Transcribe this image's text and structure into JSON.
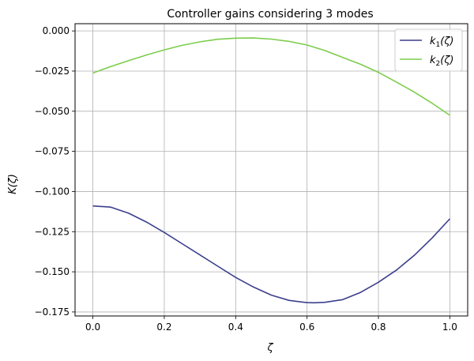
{
  "chart_data": {
    "type": "line",
    "title": "Controller gains considering 3 modes",
    "xlabel": "ζ",
    "ylabel": "K(ζ)",
    "xlim": [
      -0.05,
      1.05
    ],
    "ylim": [
      -0.1775,
      0.0045
    ],
    "xticks": [
      0.0,
      0.2,
      0.4,
      0.6,
      0.8,
      1.0
    ],
    "xtick_labels": [
      "0.0",
      "0.2",
      "0.4",
      "0.6",
      "0.8",
      "1.0"
    ],
    "yticks": [
      0.0,
      -0.025,
      -0.05,
      -0.075,
      -0.1,
      -0.125,
      -0.15,
      -0.175
    ],
    "ytick_labels": [
      "0.000",
      "−0.025",
      "−0.050",
      "−0.075",
      "−0.100",
      "−0.125",
      "−0.150",
      "−0.175"
    ],
    "grid": true,
    "legend": "top-right",
    "series": [
      {
        "name": "k1(ζ)",
        "legend_base": "k",
        "legend_sub": "1",
        "legend_tail": "(ζ)",
        "color": "#3b3f8c",
        "x": [
          0.0,
          0.05,
          0.1,
          0.15,
          0.2,
          0.25,
          0.3,
          0.35,
          0.4,
          0.45,
          0.5,
          0.55,
          0.6,
          0.62,
          0.65,
          0.7,
          0.75,
          0.8,
          0.85,
          0.9,
          0.95,
          1.0
        ],
        "values": [
          -0.109,
          -0.1097,
          -0.1135,
          -0.119,
          -0.1255,
          -0.1325,
          -0.1395,
          -0.1465,
          -0.1535,
          -0.1595,
          -0.1645,
          -0.1678,
          -0.1692,
          -0.1693,
          -0.169,
          -0.1673,
          -0.1628,
          -0.1565,
          -0.149,
          -0.1398,
          -0.129,
          -0.117
        ]
      },
      {
        "name": "k2(ζ)",
        "legend_base": "k",
        "legend_sub": "2",
        "legend_tail": "(ζ)",
        "color": "#7ccd4c",
        "x": [
          0.0,
          0.05,
          0.1,
          0.15,
          0.2,
          0.25,
          0.3,
          0.35,
          0.4,
          0.45,
          0.5,
          0.55,
          0.6,
          0.65,
          0.7,
          0.75,
          0.8,
          0.85,
          0.9,
          0.95,
          1.0
        ],
        "values": [
          -0.0262,
          -0.0222,
          -0.0185,
          -0.015,
          -0.0118,
          -0.009,
          -0.0068,
          -0.0052,
          -0.0045,
          -0.0044,
          -0.0051,
          -0.0065,
          -0.0088,
          -0.0122,
          -0.0165,
          -0.0208,
          -0.0258,
          -0.0318,
          -0.038,
          -0.045,
          -0.0525
        ]
      }
    ]
  }
}
